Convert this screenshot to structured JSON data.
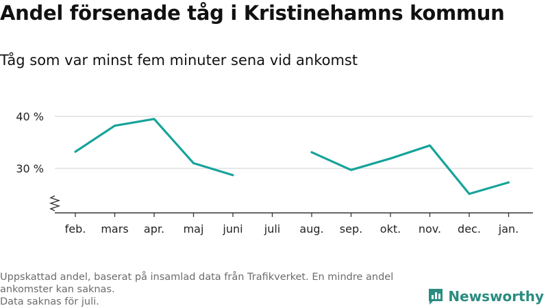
{
  "title": "Andel försenade tåg i Kristinehamns kommun",
  "subtitle": "Tåg som var minst fem minuter sena vid ankomst",
  "footnote": {
    "line1": "Uppskattad andel, baserat på insamlad data från Trafikverket. En mindre andel ankomster kan saknas.",
    "line2": "Data saknas för juli."
  },
  "brand": {
    "name": "Newsworthy",
    "color": "#2a8c80"
  },
  "chart_data": {
    "type": "line",
    "categories": [
      "feb.",
      "mars",
      "apr.",
      "maj",
      "juni",
      "juli",
      "aug.",
      "sep.",
      "okt.",
      "nov.",
      "dec.",
      "jan."
    ],
    "series": [
      {
        "values": [
          33.2,
          38.2,
          39.5,
          31.0,
          28.7,
          null,
          33.1,
          29.7,
          31.9,
          34.4,
          25.1,
          27.3
        ],
        "color": "#15a39a"
      }
    ],
    "yticks": [
      30,
      40
    ],
    "ytick_labels": [
      "30 %",
      "40 %"
    ],
    "ylim": [
      21.5,
      40
    ],
    "axis_break": true,
    "grid": true
  }
}
